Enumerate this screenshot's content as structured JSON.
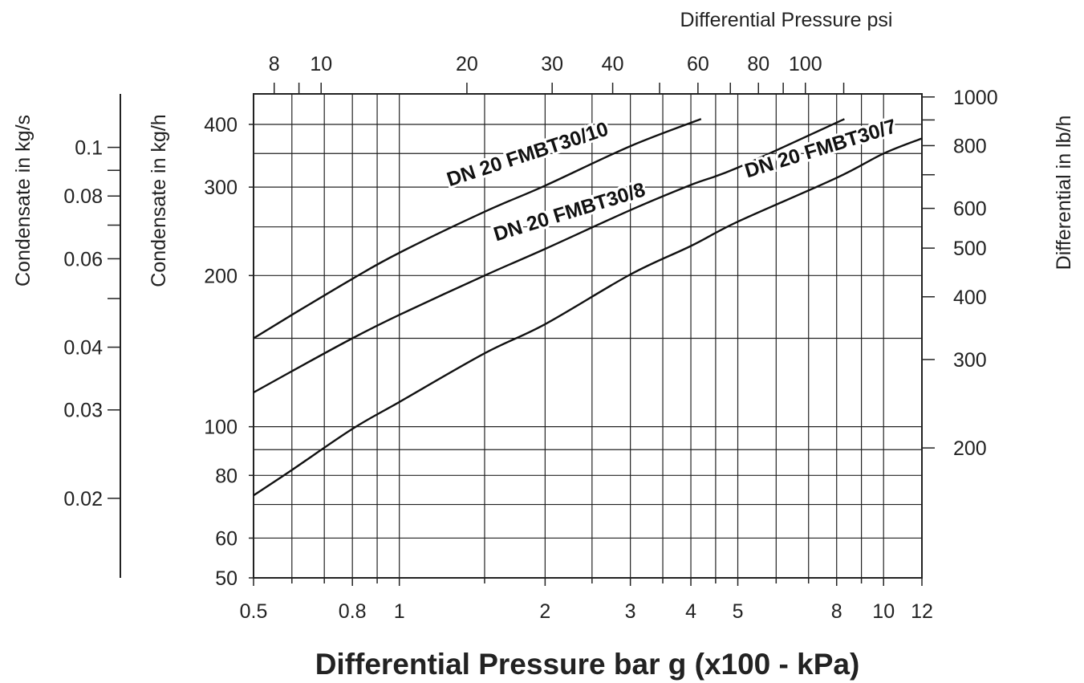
{
  "chart_data": {
    "type": "line",
    "xlabel": "Differential Pressure bar g (x100 - kPa)",
    "top_xlabel": "Differential Pressure psi",
    "ylabel_kgs": "Condensate in kg/s",
    "ylabel_kgh": "Condensate in kg/h",
    "ylabel_lbh": "Differential in lb/h",
    "x_scale": "log",
    "y_scale": "log",
    "xlim": [
      0.5,
      12
    ],
    "ylim": [
      50,
      460
    ],
    "x_ticks": [
      {
        "value": 0.5,
        "label": "0.5"
      },
      {
        "value": 0.8,
        "label": "0.8"
      },
      {
        "value": 1,
        "label": "1"
      },
      {
        "value": 2,
        "label": "2"
      },
      {
        "value": 3,
        "label": "3"
      },
      {
        "value": 4,
        "label": "4"
      },
      {
        "value": 5,
        "label": "5"
      },
      {
        "value": 8,
        "label": "8"
      },
      {
        "value": 10,
        "label": "10"
      },
      {
        "value": 12,
        "label": "12"
      }
    ],
    "x_minor_ticks": [
      0.6,
      0.7,
      0.9,
      1.5,
      2.5,
      3.5,
      4.5,
      6,
      7,
      9
    ],
    "top_ticks": [
      {
        "value": 8,
        "label": "8"
      },
      {
        "value": 10,
        "label": "10"
      },
      {
        "value": 20,
        "label": "20"
      },
      {
        "value": 30,
        "label": "30"
      },
      {
        "value": 40,
        "label": "40"
      },
      {
        "value": 60,
        "label": "60"
      },
      {
        "value": 80,
        "label": "80"
      },
      {
        "value": 100,
        "label": "100"
      }
    ],
    "top_minor_ticks": [
      9,
      50,
      70,
      90,
      120
    ],
    "y_ticks": [
      {
        "value": 50,
        "label": "50"
      },
      {
        "value": 60,
        "label": "60"
      },
      {
        "value": 80,
        "label": "80"
      },
      {
        "value": 100,
        "label": "100"
      },
      {
        "value": 200,
        "label": "200"
      },
      {
        "value": 300,
        "label": "300"
      },
      {
        "value": 400,
        "label": "400"
      }
    ],
    "y_grid_extra": [
      70,
      90,
      150,
      250,
      350
    ],
    "kgs_ticks": [
      {
        "value": 0.1,
        "label": "0.1"
      },
      {
        "value": 0.08,
        "label": "0.08"
      },
      {
        "value": 0.06,
        "label": "0.06"
      },
      {
        "value": 0.04,
        "label": "0.04"
      },
      {
        "value": 0.03,
        "label": "0.03"
      },
      {
        "value": 0.02,
        "label": "0.02"
      }
    ],
    "kgs_minor_ticks": [
      0.09,
      0.07,
      0.05
    ],
    "lbh_ticks": [
      {
        "value": 1000,
        "label": "1000"
      },
      {
        "value": 800,
        "label": "800"
      },
      {
        "value": 600,
        "label": "600"
      },
      {
        "value": 500,
        "label": "500"
      },
      {
        "value": 400,
        "label": "400"
      },
      {
        "value": 300,
        "label": "300"
      },
      {
        "value": 200,
        "label": "200"
      }
    ],
    "lbh_minor_ticks": [
      900,
      700
    ],
    "series": [
      {
        "name": "DN 20 FMBT30/10",
        "x": [
          0.5,
          0.6,
          0.8,
          1,
          1.5,
          2,
          3,
          4.2
        ],
        "y": [
          150,
          167,
          197,
          222,
          268,
          302,
          362,
          410
        ]
      },
      {
        "name": "DN 20 FMBT30/8",
        "x": [
          0.5,
          0.6,
          0.8,
          1,
          1.5,
          2,
          3,
          4,
          5,
          8.3
        ],
        "y": [
          117,
          129,
          150,
          167,
          200,
          226,
          270,
          303,
          328,
          410
        ]
      },
      {
        "name": "DN 20 FMBT30/7",
        "x": [
          0.5,
          0.6,
          0.8,
          1,
          1.5,
          2,
          3,
          4,
          5,
          8,
          10,
          12
        ],
        "y": [
          73,
          82,
          99,
          112,
          140,
          160,
          201,
          229,
          256,
          313,
          350,
          375
        ]
      }
    ]
  }
}
